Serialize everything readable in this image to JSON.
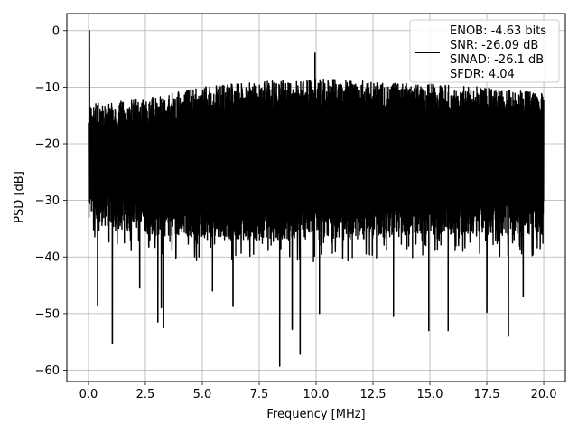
{
  "chart_data": {
    "type": "line",
    "title": "",
    "xlabel": "Frequency [MHz]",
    "ylabel": "PSD [dB]",
    "xlim": [
      -0.95,
      20.95
    ],
    "ylim": [
      -62.0,
      3.0
    ],
    "xticks": [
      0.0,
      2.5,
      5.0,
      7.5,
      10.0,
      12.5,
      15.0,
      17.5,
      20.0
    ],
    "xtick_labels": [
      "0.0",
      "2.5",
      "5.0",
      "7.5",
      "10.0",
      "12.5",
      "15.0",
      "17.5",
      "20.0"
    ],
    "yticks": [
      0,
      -10,
      -20,
      -30,
      -40,
      -50,
      -60
    ],
    "ytick_labels": [
      "0",
      "−10",
      "−20",
      "−30",
      "−40",
      "−50",
      "−60"
    ],
    "grid": true,
    "legend_position": "top-right",
    "legend": {
      "lines": [
        "ENOB: -4.63 bits",
        "SNR: -26.09 dB",
        "SINAD: -26.1 dB",
        "SFDR: 4.04"
      ]
    },
    "series": [
      {
        "color": "#000000",
        "noise_envelope": {
          "x": [
            0.0,
            2.5,
            5.0,
            7.5,
            10.0,
            12.5,
            15.0,
            17.5,
            20.0
          ],
          "upper": [
            -13,
            -12,
            -10,
            -9,
            -8.5,
            -9,
            -9.5,
            -10,
            -11
          ],
          "lower": [
            -34,
            -36,
            -37,
            -37,
            -37,
            -37,
            -36,
            -36,
            -36
          ]
        },
        "peaks": [
          {
            "x": 0.04,
            "y": 0.0
          },
          {
            "x": 9.95,
            "y": -4.0
          }
        ],
        "dips": [
          {
            "x": 1.05,
            "y": -55.3
          },
          {
            "x": 0.4,
            "y": -48.5
          },
          {
            "x": 3.05,
            "y": -51.5
          },
          {
            "x": 3.3,
            "y": -52.5
          },
          {
            "x": 3.2,
            "y": -49.0
          },
          {
            "x": 8.4,
            "y": -59.3
          },
          {
            "x": 8.95,
            "y": -52.8
          },
          {
            "x": 9.3,
            "y": -57.2
          },
          {
            "x": 10.15,
            "y": -50.0
          },
          {
            "x": 13.4,
            "y": -50.5
          },
          {
            "x": 14.95,
            "y": -53.0
          },
          {
            "x": 15.8,
            "y": -53.0
          },
          {
            "x": 17.5,
            "y": -49.8
          },
          {
            "x": 18.45,
            "y": -54.0
          },
          {
            "x": 6.35,
            "y": -48.6
          },
          {
            "x": 5.45,
            "y": -46.0
          },
          {
            "x": 2.25,
            "y": -45.5
          },
          {
            "x": 19.1,
            "y": -47.0
          }
        ]
      }
    ]
  }
}
